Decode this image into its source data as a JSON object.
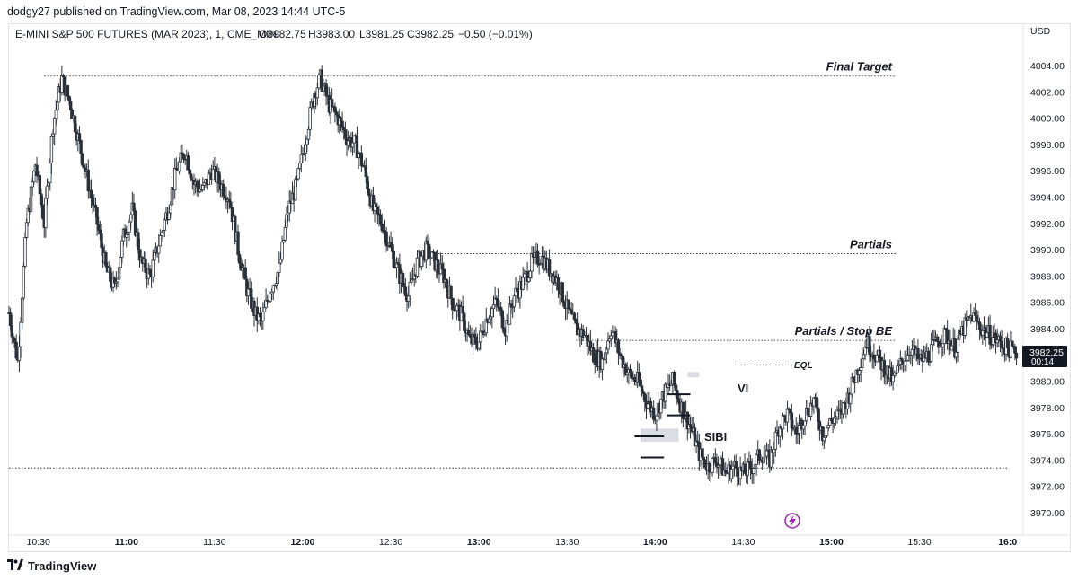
{
  "header": {
    "published": "dodgy27 published on TradingView.com, Mar 08, 2023 14:44 UTC-5"
  },
  "legend": {
    "symbol": "E-MINI S&P 500 FUTURES (MAR 2023), 1, CME_MINI",
    "open": "O3982.75",
    "high": "H3983.00",
    "low": "L3981.25",
    "close": "C3982.25",
    "change": "−0.50 (−0.01%)"
  },
  "currency": "USD",
  "price_badge": {
    "price": "3982.25",
    "timer": "00:14"
  },
  "footer": {
    "brand": "TradingView"
  },
  "colors": {
    "candle": "#2b3038",
    "wick": "#2b3038",
    "badge_bg": "#131722",
    "signal_icon": "#9c27b0",
    "gap_box": "#d1d4dc"
  },
  "chart_data": {
    "type": "candlestick",
    "timeframe": "1 minute",
    "x_range": [
      "10:20",
      "16:05"
    ],
    "ylim": [
      3969,
      4006.5
    ],
    "y_ticks": [
      4004,
      4002,
      4000,
      3998,
      3996,
      3994,
      3992,
      3990,
      3988,
      3986,
      3984,
      3980,
      3978,
      3976,
      3974,
      3972,
      3970
    ],
    "y_tick_labels": [
      "4004.00",
      "4002.00",
      "4000.00",
      "3998.00",
      "3996.00",
      "3994.00",
      "3992.00",
      "3990.00",
      "3988.00",
      "3986.00",
      "3984.00",
      "3980.00",
      "3978.00",
      "3976.00",
      "3974.00",
      "3972.00",
      "3970.00"
    ],
    "x_ticks": [
      {
        "label": "10:30",
        "time": "10:30",
        "bold": false
      },
      {
        "label": "11:00",
        "time": "11:00",
        "bold": true
      },
      {
        "label": "11:30",
        "time": "11:30",
        "bold": false
      },
      {
        "label": "12:00",
        "time": "12:00",
        "bold": true
      },
      {
        "label": "12:30",
        "time": "12:30",
        "bold": false
      },
      {
        "label": "13:00",
        "time": "13:00",
        "bold": true
      },
      {
        "label": "13:30",
        "time": "13:30",
        "bold": false
      },
      {
        "label": "14:00",
        "time": "14:00",
        "bold": true
      },
      {
        "label": "14:30",
        "time": "14:30",
        "bold": false
      },
      {
        "label": "15:00",
        "time": "15:00",
        "bold": true
      },
      {
        "label": "15:30",
        "time": "15:30",
        "bold": false
      },
      {
        "label": "16:0",
        "time": "16:00",
        "bold": true
      }
    ],
    "price_path": [
      [
        "10:20",
        3985.2
      ],
      [
        "10:23",
        3981.5
      ],
      [
        "10:26",
        3992
      ],
      [
        "10:29",
        3996.5
      ],
      [
        "10:32",
        3992
      ],
      [
        "10:35",
        3999.5
      ],
      [
        "10:38",
        4003
      ],
      [
        "10:41",
        4001
      ],
      [
        "10:44",
        3998
      ],
      [
        "10:47",
        3995
      ],
      [
        "10:50",
        3992
      ],
      [
        "10:53",
        3988.5
      ],
      [
        "10:56",
        3987
      ],
      [
        "10:59",
        3991
      ],
      [
        "11:02",
        3993
      ],
      [
        "11:05",
        3989
      ],
      [
        "11:08",
        3988
      ],
      [
        "11:11",
        3990.5
      ],
      [
        "11:14",
        3993
      ],
      [
        "11:17",
        3996
      ],
      [
        "11:20",
        3997.5
      ],
      [
        "11:23",
        3995
      ],
      [
        "11:26",
        3994.5
      ],
      [
        "11:29",
        3996
      ],
      [
        "11:32",
        3995
      ],
      [
        "11:35",
        3994
      ],
      [
        "11:38",
        3990
      ],
      [
        "11:41",
        3987
      ],
      [
        "11:44",
        3985
      ],
      [
        "11:46",
        3984.5
      ],
      [
        "11:49",
        3987
      ],
      [
        "11:52",
        3988.5
      ],
      [
        "11:55",
        3993
      ],
      [
        "11:58",
        3995
      ],
      [
        "12:01",
        3998.5
      ],
      [
        "12:04",
        4002
      ],
      [
        "12:06",
        4003
      ],
      [
        "12:09",
        4001
      ],
      [
        "12:12",
        4000
      ],
      [
        "12:15",
        3998.5
      ],
      [
        "12:18",
        3998
      ],
      [
        "12:21",
        3996
      ],
      [
        "12:24",
        3993
      ],
      [
        "12:27",
        3992
      ],
      [
        "12:30",
        3990
      ],
      [
        "12:33",
        3988
      ],
      [
        "12:36",
        3986.5
      ],
      [
        "12:39",
        3989
      ],
      [
        "12:42",
        3990
      ],
      [
        "12:45",
        3989
      ],
      [
        "12:48",
        3988
      ],
      [
        "12:51",
        3986
      ],
      [
        "12:54",
        3985
      ],
      [
        "12:57",
        3983
      ],
      [
        "13:00",
        3983
      ],
      [
        "13:03",
        3985
      ],
      [
        "13:06",
        3986
      ],
      [
        "13:09",
        3984
      ],
      [
        "13:12",
        3986.5
      ],
      [
        "13:15",
        3987.5
      ],
      [
        "13:18",
        3989
      ],
      [
        "13:21",
        3989.5
      ],
      [
        "13:24",
        3988.5
      ],
      [
        "13:27",
        3987.5
      ],
      [
        "13:30",
        3985.5
      ],
      [
        "13:33",
        3984
      ],
      [
        "13:36",
        3983.5
      ],
      [
        "13:39",
        3982
      ],
      [
        "13:42",
        3981.5
      ],
      [
        "13:45",
        3984
      ],
      [
        "13:48",
        3982
      ],
      [
        "13:51",
        3980.5
      ],
      [
        "13:54",
        3980
      ],
      [
        "13:57",
        3978.5
      ],
      [
        "14:00",
        3977.5
      ],
      [
        "14:03",
        3979
      ],
      [
        "14:06",
        3980
      ],
      [
        "14:09",
        3978
      ],
      [
        "14:12",
        3976.5
      ],
      [
        "14:15",
        3974.5
      ],
      [
        "14:18",
        3973.5
      ],
      [
        "14:21",
        3974
      ],
      [
        "14:24",
        3973
      ],
      [
        "14:27",
        3973.5
      ],
      [
        "14:30",
        3973
      ],
      [
        "14:33",
        3973.5
      ],
      [
        "14:36",
        3974.5
      ],
      [
        "14:39",
        3974
      ],
      [
        "14:42",
        3976.5
      ],
      [
        "14:45",
        3977.5
      ],
      [
        "14:48",
        3976
      ],
      [
        "14:51",
        3977.5
      ],
      [
        "14:54",
        3978.5
      ],
      [
        "14:57",
        3976
      ],
      [
        "15:00",
        3977
      ],
      [
        "15:03",
        3977.5
      ],
      [
        "15:06",
        3979
      ],
      [
        "15:09",
        3981
      ],
      [
        "15:12",
        3983
      ],
      [
        "15:15",
        3982
      ],
      [
        "15:18",
        3981
      ],
      [
        "15:21",
        3980
      ],
      [
        "15:24",
        3981.5
      ],
      [
        "15:27",
        3982.5
      ],
      [
        "15:30",
        3981.5
      ],
      [
        "15:33",
        3982
      ],
      [
        "15:36",
        3983
      ],
      [
        "15:39",
        3983.5
      ],
      [
        "15:42",
        3982.5
      ],
      [
        "15:45",
        3984
      ],
      [
        "15:48",
        3985
      ],
      [
        "15:51",
        3984
      ],
      [
        "15:54",
        3983.5
      ],
      [
        "15:57",
        3983
      ],
      [
        "16:00",
        3982.5
      ],
      [
        "16:03",
        3982.25
      ]
    ],
    "levels": [
      {
        "name": "Final Target",
        "price": 4003.2,
        "from": "10:32",
        "to": "16:30",
        "style": "dotted"
      },
      {
        "name": "Partials",
        "price": 3989.7,
        "from": "12:43",
        "to": "16:30",
        "style": "dotted"
      },
      {
        "name": "Partials / Stop BE",
        "price": 3983.1,
        "from": "13:33",
        "to": "16:30",
        "style": "dotted"
      },
      {
        "name": "EQL",
        "price": 3981.25,
        "from": "14:27",
        "to": "14:48",
        "style": "dotted"
      },
      {
        "name": "",
        "price": 3973.4,
        "from": "10:20",
        "to": "16:00",
        "style": "dotted"
      }
    ],
    "annotations": [
      {
        "text": "Final Target",
        "price": 4003.2,
        "align_time": "16:30"
      },
      {
        "text": "Partials",
        "price": 3989.7,
        "align_time": "16:30"
      },
      {
        "text": "Partials / Stop BE",
        "price": 3983.1,
        "align_time": "16:30"
      },
      {
        "text": "EQL",
        "price": 3981.25,
        "align_time": "14:41"
      },
      {
        "text": "VI",
        "price": 3979.5,
        "align_time": "14:20"
      },
      {
        "text": "SIBI",
        "price": 3975.8,
        "align_time": "14:12"
      }
    ],
    "gap_boxes": [
      {
        "name": "SIBI",
        "from": "13:55",
        "to": "14:08",
        "low": 3975.4,
        "high": 3976.4
      },
      {
        "name": "VI",
        "from": "14:11",
        "to": "14:15",
        "low": 3980.3,
        "high": 3980.7
      }
    ],
    "marker_lines": [
      {
        "price": 3974.2,
        "from": "13:55",
        "to": "14:03"
      },
      {
        "price": 3975.8,
        "from": "13:53",
        "to": "14:03"
      },
      {
        "price": 3977.4,
        "from": "14:04",
        "to": "14:12"
      },
      {
        "price": 3979.0,
        "from": "14:04",
        "to": "14:12"
      }
    ]
  }
}
